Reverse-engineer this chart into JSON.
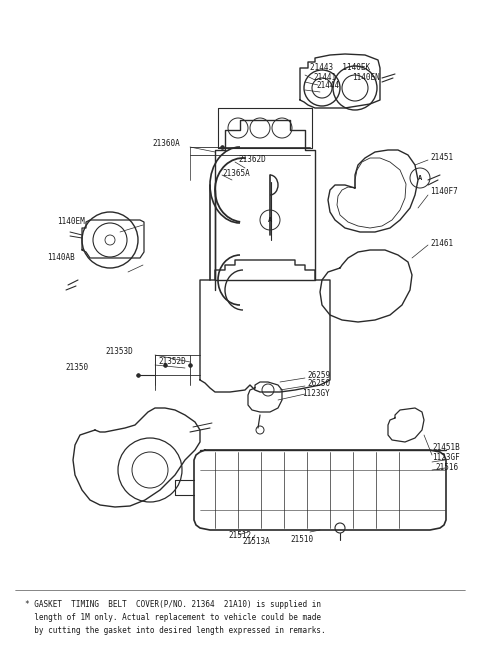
{
  "bg_color": "#ffffff",
  "line_color": "#2a2a2a",
  "text_color": "#1a1a1a",
  "figsize": [
    4.8,
    6.57
  ],
  "dpi": 100,
  "footnote_lines": [
    "* GASKET  TIMING  BELT  COVER(P/NO. 21364  21A10) is supplied in",
    "  length of 1M only. Actual replacement to vehicle could be made",
    "  by cutting the gasket into desired length expressed in remarks."
  ]
}
